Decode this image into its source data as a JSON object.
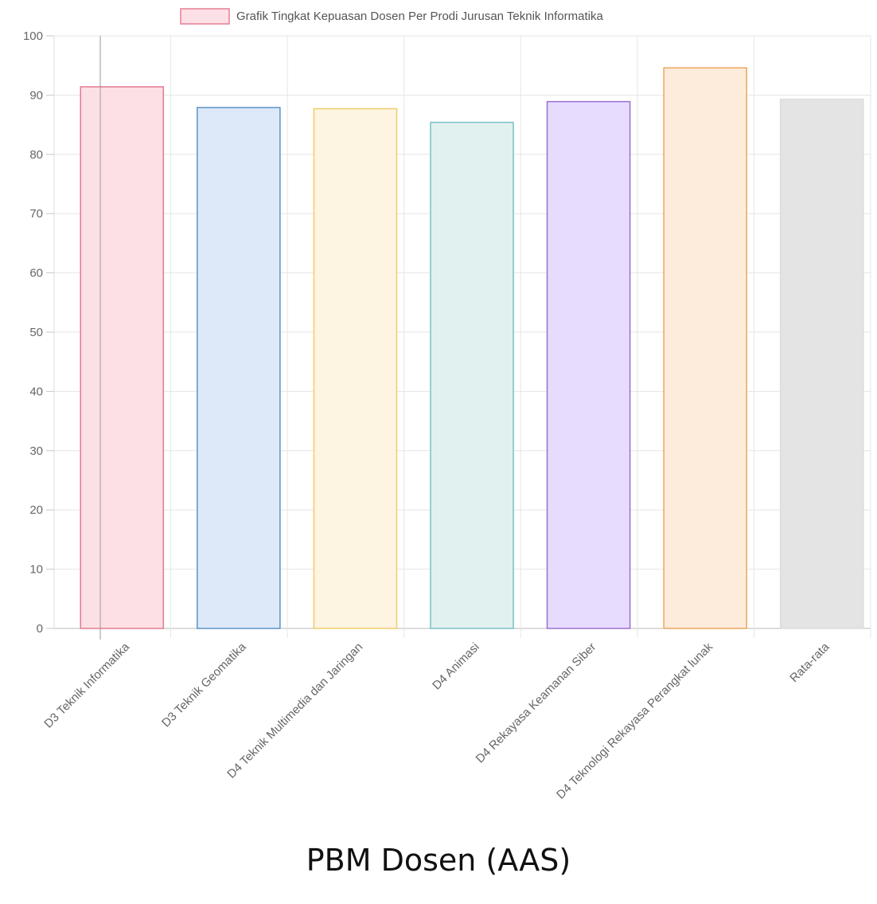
{
  "chart_data": {
    "type": "bar",
    "legend_label": "Grafik Tingkat Kepuasan Dosen Per Prodi Jurusan Teknik Informatika",
    "legend_position": "top-center",
    "legend_swatch_fill": "#fde0e6",
    "legend_swatch_border": "#e57f93",
    "categories": [
      "D3 Teknik Informatika",
      "D3 Teknik Geomatika",
      "D4 Teknik Multimedia dan Jaringan",
      "D4 Animasi",
      "D4 Rekayasa Keamanan Siber",
      "D4 Teknologi Rekayasa Perangkat lunak",
      "Rata-rata"
    ],
    "values": [
      91.4,
      87.9,
      87.7,
      85.4,
      88.9,
      94.6,
      89.3
    ],
    "bar_fills": [
      "#fde0e6",
      "#dde9f9",
      "#fdf4e1",
      "#e1f1f0",
      "#e7dcfe",
      "#fdebdb",
      "#e4e4e4"
    ],
    "bar_borders": [
      "#e17a92",
      "#5d93c4",
      "#f0cd6b",
      "#78c3c0",
      "#9a6ed0",
      "#eca75a",
      "#dcdcdc"
    ],
    "ylim": [
      0,
      100
    ],
    "yticks": [
      0,
      10,
      20,
      30,
      40,
      50,
      60,
      70,
      80,
      90,
      100
    ],
    "grid": true,
    "xlabel": "",
    "ylabel": ""
  },
  "caption": "PBM Dosen (AAS)"
}
